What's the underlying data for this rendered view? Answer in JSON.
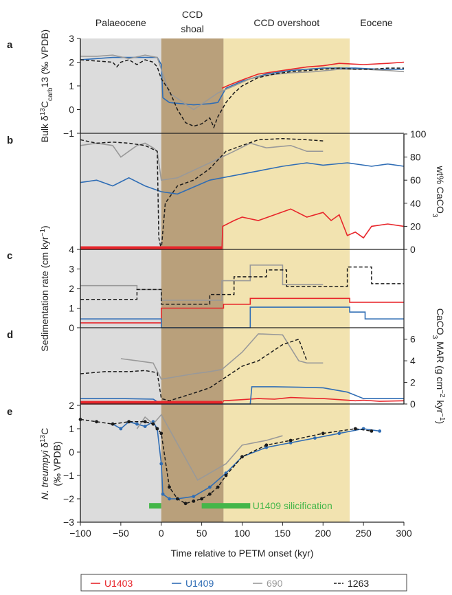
{
  "chart_data": {
    "type": "line",
    "x_axis": {
      "label": "Time relative to PETM onset (kyr)",
      "range": [
        -100,
        300
      ],
      "ticks": [
        -100,
        -50,
        0,
        50,
        100,
        150,
        200,
        250,
        300
      ]
    },
    "phases": [
      {
        "label": "Palaeocene",
        "range": [
          -100,
          0
        ],
        "color": "#dcdcdc"
      },
      {
        "label": "CCD shoal",
        "range": [
          0,
          77
        ],
        "color": "#b9a07b"
      },
      {
        "label": "CCD overshoot",
        "range": [
          77,
          233
        ],
        "color": "#f2e3b0"
      },
      {
        "label": "Eocene",
        "range": [
          233,
          300
        ],
        "color": "#ffffff"
      }
    ],
    "colors": {
      "U1403": "#e8262b",
      "U1409": "#2f6db5",
      "690": "#999999",
      "1263": "#1a1a1a"
    },
    "legend": [
      {
        "label": "U1403",
        "color": "#e8262b",
        "dash": false
      },
      {
        "label": "U1409",
        "color": "#2f6db5",
        "dash": false
      },
      {
        "label": "690",
        "color": "#999999",
        "dash": false
      },
      {
        "label": "1263",
        "color": "#1a1a1a",
        "dash": true
      }
    ],
    "panels": [
      {
        "id": "a",
        "ylabel": "Bulk δ13Ccarb (‰ VPDB)",
        "ylabel_parts": {
          "pre": "Bulk δ",
          "sup": "13",
          "main": "C",
          "sub": "carb",
          "post": " (‰ VPDB)"
        },
        "y_ticks": [
          -1,
          0,
          1,
          2,
          3
        ],
        "ylim": [
          -1,
          3
        ],
        "series": [
          {
            "name": "U1403",
            "x": [
              75,
              85,
              100,
              120,
              150,
              180,
              200,
              220,
              250,
              280,
              300
            ],
            "y": [
              0.9,
              1.05,
              1.25,
              1.5,
              1.65,
              1.8,
              1.85,
              1.95,
              1.9,
              1.95,
              2.0
            ]
          },
          {
            "name": "U1409",
            "x": [
              -100,
              -80,
              -60,
              -40,
              -20,
              -5,
              0,
              2,
              10,
              40,
              60,
              70,
              80,
              100,
              130,
              160,
              200,
              240,
              270,
              300
            ],
            "y": [
              2.1,
              2.15,
              2.2,
              2.2,
              2.2,
              2.2,
              1.9,
              0.5,
              0.3,
              0.2,
              0.25,
              0.3,
              0.9,
              1.2,
              1.5,
              1.65,
              1.75,
              1.75,
              1.7,
              1.7
            ]
          },
          {
            "name": "690",
            "x": [
              -100,
              -80,
              -60,
              -40,
              -20,
              -5,
              0,
              10,
              40,
              70,
              90,
              110,
              130,
              160,
              190,
              220,
              250,
              280,
              300
            ],
            "y": [
              2.25,
              2.25,
              2.3,
              2.15,
              2.3,
              2.2,
              1.7,
              0.7,
              0.0,
              0.7,
              1.0,
              1.3,
              1.45,
              1.55,
              1.6,
              1.7,
              1.7,
              1.65,
              1.6
            ]
          },
          {
            "name": "1263",
            "x": [
              -100,
              -80,
              -60,
              -55,
              -50,
              -40,
              -30,
              -20,
              -10,
              -5,
              0,
              10,
              20,
              30,
              40,
              50,
              60,
              65,
              70,
              80,
              90,
              100,
              120,
              140,
              160,
              180,
              200,
              220,
              240,
              260,
              280,
              300
            ],
            "y": [
              2.1,
              2.05,
              2.0,
              1.8,
              2.0,
              2.1,
              1.9,
              2.1,
              2.0,
              1.8,
              1.3,
              0.8,
              0.0,
              -0.55,
              -0.7,
              -0.6,
              -0.35,
              -0.75,
              -0.3,
              0.3,
              0.7,
              1.0,
              1.35,
              1.5,
              1.6,
              1.65,
              1.7,
              1.75,
              1.7,
              1.7,
              1.75,
              1.75
            ]
          }
        ]
      },
      {
        "id": "b",
        "ylabel": "wt% CaCO3",
        "ylabel_parts": {
          "pre": "wt% CaCO",
          "sub": "3"
        },
        "y_ticks": [
          0,
          20,
          40,
          60,
          80,
          100
        ],
        "ylim": [
          0,
          100
        ],
        "series": [
          {
            "name": "U1403",
            "x": [
              -100,
              75,
              76,
              90,
              100,
              120,
              140,
              160,
              180,
              200,
              210,
              220,
              230,
              240,
              250,
              260,
              280,
              300
            ],
            "y": [
              0,
              0,
              20,
              25,
              28,
              25,
              30,
              35,
              28,
              32,
              25,
              30,
              12,
              15,
              10,
              20,
              22,
              20
            ]
          },
          {
            "name": "U1409",
            "x": [
              -100,
              -80,
              -60,
              -40,
              -20,
              0,
              20,
              60,
              120,
              150,
              180,
              200,
              230,
              260,
              280,
              300
            ],
            "y": [
              58,
              60,
              55,
              62,
              55,
              50,
              48,
              60,
              68,
              72,
              75,
              73,
              75,
              72,
              74,
              72
            ]
          },
          {
            "name": "690",
            "x": [
              -100,
              -80,
              -60,
              -50,
              -40,
              -30,
              -20,
              -10,
              -5,
              0,
              20,
              60,
              90,
              110,
              130,
              160,
              180,
              200
            ],
            "y": [
              90,
              92,
              90,
              80,
              85,
              90,
              92,
              88,
              85,
              60,
              62,
              75,
              85,
              92,
              88,
              90,
              85,
              85
            ]
          },
          {
            "name": "1263",
            "x": [
              -100,
              -80,
              -60,
              -40,
              -20,
              -5,
              -3,
              0,
              5,
              20,
              40,
              60,
              80,
              100,
              120,
              150,
              180,
              200
            ],
            "y": [
              95,
              92,
              93,
              92,
              90,
              85,
              10,
              0,
              40,
              55,
              60,
              70,
              85,
              90,
              95,
              96,
              95,
              94
            ]
          }
        ]
      },
      {
        "id": "c",
        "ylabel": "Sedimentation rate (cm kyr-1)",
        "ylabel_parts": {
          "pre": "Sedimentation rate (cm kyr",
          "sup": "−1",
          "post": ")"
        },
        "y_ticks": [
          0,
          1,
          2,
          3,
          4
        ],
        "ylim": [
          0,
          4
        ],
        "series": [
          {
            "name": "U1403",
            "x": [
              -100,
              0,
              0,
              77,
              77,
              110,
              110,
              233,
              233,
              300
            ],
            "y": [
              0.25,
              0.25,
              1.0,
              1.0,
              1.2,
              1.2,
              1.5,
              1.5,
              1.3,
              1.3
            ]
          },
          {
            "name": "U1409",
            "x": [
              -100,
              0,
              0,
              10,
              10,
              110,
              110,
              233,
              233,
              252,
              252,
              300
            ],
            "y": [
              0.45,
              0.45,
              0.0,
              0.0,
              0.0,
              0.0,
              1.05,
              1.05,
              0.8,
              0.8,
              0.45,
              0.45
            ]
          },
          {
            "name": "690",
            "x": [
              -100,
              -30,
              -30,
              0,
              0,
              75,
              75,
              110,
              110,
              150,
              150,
              200,
              200
            ],
            "y": [
              2.15,
              2.15,
              1.95,
              1.95,
              1.4,
              1.4,
              2.4,
              2.4,
              3.2,
              3.2,
              2.2,
              2.2,
              2.2
            ]
          },
          {
            "name": "1263",
            "x": [
              -100,
              -30,
              -30,
              0,
              0,
              60,
              60,
              90,
              90,
              130,
              130,
              155,
              155,
              230,
              230,
              260,
              260,
              300
            ],
            "y": [
              1.45,
              1.45,
              1.95,
              1.95,
              1.2,
              1.2,
              1.7,
              1.7,
              2.6,
              2.6,
              2.95,
              2.95,
              2.1,
              2.1,
              3.1,
              3.1,
              2.25,
              2.25
            ]
          }
        ]
      },
      {
        "id": "d",
        "ylabel": "CaCO3 MAR (g cm-2 kyr-1)",
        "ylabel_parts": {
          "pre": "CaCO",
          "sub": "3",
          "mid": " MAR (g cm",
          "sup": "−2",
          "mid2": " kyr",
          "sup2": "−1",
          "post": ")"
        },
        "y_ticks": [
          0,
          2,
          4,
          6
        ],
        "ylim": [
          0,
          7
        ],
        "series": [
          {
            "name": "U1403",
            "x": [
              -100,
              75,
              77,
              100,
              120,
              140,
              160,
              180,
              200,
              220,
              240,
              250,
              270,
              300
            ],
            "y": [
              0,
              0,
              0.3,
              0.4,
              0.5,
              0.45,
              0.6,
              0.55,
              0.5,
              0.4,
              0.3,
              0.35,
              0.25,
              0.3
            ]
          },
          {
            "name": "U1409",
            "x": [
              -100,
              -50,
              -10,
              0,
              10,
              110,
              112,
              140,
              170,
              200,
              230,
              250,
              280,
              300
            ],
            "y": [
              0.5,
              0.5,
              0.45,
              0.0,
              0.0,
              0.0,
              1.6,
              1.6,
              1.55,
              1.5,
              1.1,
              0.5,
              0.5,
              0.5
            ]
          },
          {
            "name": "690",
            "x": [
              -50,
              -30,
              -10,
              0,
              40,
              60,
              75,
              100,
              120,
              150,
              170,
              180,
              200
            ],
            "y": [
              4.2,
              4.0,
              3.8,
              2.3,
              2.8,
              3.0,
              3.2,
              4.8,
              6.5,
              6.4,
              4.0,
              3.8,
              3.8
            ]
          },
          {
            "name": "1263",
            "x": [
              -100,
              -70,
              -40,
              -20,
              -5,
              0,
              10,
              40,
              60,
              80,
              100,
              120,
              150,
              170,
              180
            ],
            "y": [
              2.8,
              3.0,
              3.0,
              3.1,
              2.9,
              0.5,
              0.3,
              1.0,
              1.5,
              2.5,
              3.5,
              4.0,
              5.5,
              6.0,
              4.0
            ]
          }
        ]
      },
      {
        "id": "e",
        "ylabel": "N. treumpyi δ13C (‰ VPDB)",
        "ylabel_parts": {
          "species": "N. treumpyi",
          "pre": " δ",
          "sup": "13",
          "main": "C",
          "line2": "(‰ VPDB)"
        },
        "y_ticks": [
          -3,
          -2,
          -1,
          0,
          1,
          2
        ],
        "ylim": [
          -3,
          2
        ],
        "series": [
          {
            "name": "U1409",
            "x": [
              -60,
              -50,
              -40,
              -30,
              -20,
              -10,
              -5,
              0,
              2,
              10,
              20,
              40,
              60,
              80,
              100,
              130,
              160,
              190,
              220,
              250,
              270
            ],
            "y": [
              1.2,
              1.0,
              1.3,
              1.2,
              1.1,
              1.3,
              1.0,
              -0.5,
              -1.8,
              -2.0,
              -2.0,
              -1.9,
              -1.5,
              -0.9,
              -0.2,
              0.2,
              0.4,
              0.6,
              0.8,
              1.0,
              0.9
            ]
          },
          {
            "name": "690",
            "x": [
              -30,
              -20,
              -10,
              0,
              45,
              60,
              80,
              100,
              130,
              150
            ],
            "y": [
              1.0,
              1.5,
              1.2,
              1.6,
              -1.2,
              -0.9,
              -0.5,
              0.3,
              0.5,
              0.7
            ]
          },
          {
            "name": "1263",
            "x": [
              -100,
              -80,
              -60,
              -40,
              -20,
              -10,
              -5,
              0,
              10,
              20,
              30,
              40,
              50,
              60,
              70,
              80,
              100,
              130,
              160,
              200,
              240,
              260
            ],
            "y": [
              1.4,
              1.3,
              1.2,
              1.3,
              1.3,
              1.2,
              1.0,
              0.8,
              -1.5,
              -2.0,
              -2.2,
              -2.1,
              -2.0,
              -1.8,
              -1.5,
              -1.0,
              -0.2,
              0.3,
              0.5,
              0.8,
              1.0,
              0.9
            ]
          }
        ]
      }
    ],
    "bars": {
      "silicification": {
        "label": "U1409 silicification",
        "color": "#44b649",
        "segments": [
          [
            -15,
            0
          ],
          [
            50,
            110
          ]
        ],
        "y": -2.3
      }
    },
    "red_baseline_b": {
      "x": [
        -100,
        75
      ],
      "y": 0
    },
    "red_baseline_d": {
      "x": [
        -100,
        75
      ],
      "y": 0
    }
  }
}
